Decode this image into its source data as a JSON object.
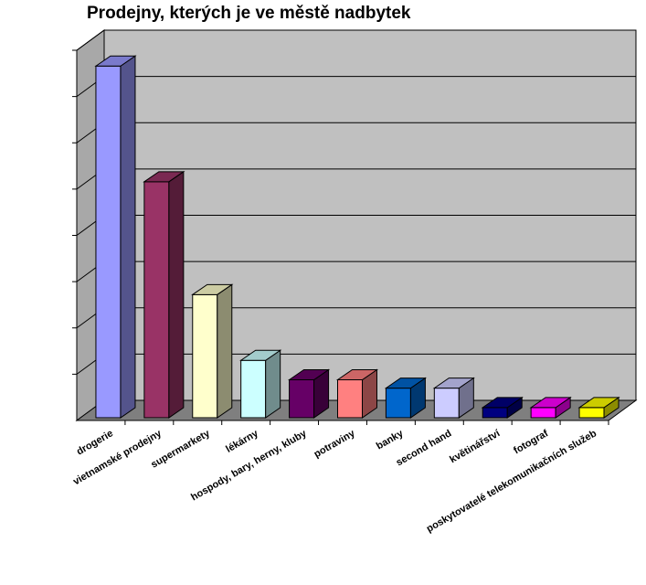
{
  "chart_data": {
    "type": "bar",
    "title": "Prodejny, kterých je ve městě nadbytek",
    "xlabel": "",
    "ylabel": "",
    "grid": true,
    "legend": "none",
    "three_d": true,
    "background_color": "#c0c0c0",
    "categories": [
      "drogerie",
      "vietnamské prodejny",
      "supermarkety",
      "lékárny",
      "hospody, bary, herny, kluby",
      "potraviny",
      "banky",
      "second hand",
      "květinářství",
      "fotograf",
      "poskytovatelé telekomunikačních služeb"
    ],
    "values": [
      38,
      25.5,
      13.3,
      6.2,
      4.1,
      4.1,
      3.2,
      3.2,
      1.1,
      1.1,
      1.1
    ],
    "ylim": [
      0,
      40
    ],
    "colors": [
      "#9999ff",
      "#993366",
      "#ffffcc",
      "#ccffff",
      "#660066",
      "#ff8080",
      "#0066cc",
      "#ccccff",
      "#000080",
      "#ff00ff",
      "#ffff00"
    ]
  }
}
